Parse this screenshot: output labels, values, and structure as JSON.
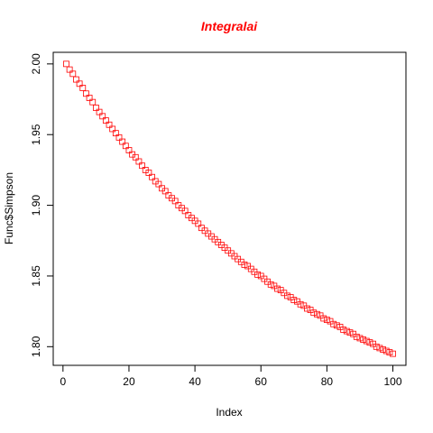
{
  "chart_data": {
    "type": "scatter",
    "title": "Integralai",
    "x_label": "Index",
    "y_label": "Func$Simpson",
    "x": [
      1,
      2,
      3,
      4,
      5,
      6,
      7,
      8,
      9,
      10,
      11,
      12,
      13,
      14,
      15,
      16,
      17,
      18,
      19,
      20,
      21,
      22,
      23,
      24,
      25,
      26,
      27,
      28,
      29,
      30,
      31,
      32,
      33,
      34,
      35,
      36,
      37,
      38,
      39,
      40,
      41,
      42,
      43,
      44,
      45,
      46,
      47,
      48,
      49,
      50,
      51,
      52,
      53,
      54,
      55,
      56,
      57,
      58,
      59,
      60,
      61,
      62,
      63,
      64,
      65,
      66,
      67,
      68,
      69,
      70,
      71,
      72,
      73,
      74,
      75,
      76,
      77,
      78,
      79,
      80,
      81,
      82,
      83,
      84,
      85,
      86,
      87,
      88,
      89,
      90,
      91,
      92,
      93,
      94,
      95,
      96,
      97,
      98,
      99,
      100
    ],
    "values": [
      2.0,
      1.996,
      1.993,
      1.989,
      1.986,
      1.983,
      1.979,
      1.976,
      1.973,
      1.969,
      1.966,
      1.963,
      1.96,
      1.957,
      1.954,
      1.951,
      1.948,
      1.945,
      1.942,
      1.939,
      1.936,
      1.934,
      1.931,
      1.928,
      1.925,
      1.923,
      1.92,
      1.917,
      1.915,
      1.912,
      1.91,
      1.907,
      1.905,
      1.903,
      1.9,
      1.898,
      1.896,
      1.893,
      1.891,
      1.889,
      1.887,
      1.884,
      1.882,
      1.88,
      1.878,
      1.876,
      1.874,
      1.872,
      1.87,
      1.868,
      1.866,
      1.864,
      1.862,
      1.86,
      1.858,
      1.857,
      1.855,
      1.853,
      1.851,
      1.85,
      1.848,
      1.846,
      1.844,
      1.843,
      1.841,
      1.84,
      1.838,
      1.836,
      1.835,
      1.833,
      1.832,
      1.83,
      1.829,
      1.827,
      1.826,
      1.824,
      1.823,
      1.822,
      1.82,
      1.819,
      1.818,
      1.816,
      1.815,
      1.814,
      1.812,
      1.811,
      1.81,
      1.809,
      1.807,
      1.806,
      1.805,
      1.804,
      1.803,
      1.802,
      1.8,
      1.799,
      1.798,
      1.797,
      1.796,
      1.795
    ],
    "color": "#ff0000",
    "marker": "square",
    "xlim": [
      -2.96,
      103.96
    ],
    "xticks": [
      0,
      20,
      40,
      60,
      80,
      100
    ],
    "ylim": [
      1.7868,
      2.0082
    ],
    "yticks": [
      {
        "value": 1.8,
        "label": "1.80"
      },
      1.85,
      {
        "value": 1.9,
        "label": "1.90"
      },
      1.95,
      {
        "value": 2.0,
        "label": "2.00"
      }
    ]
  }
}
